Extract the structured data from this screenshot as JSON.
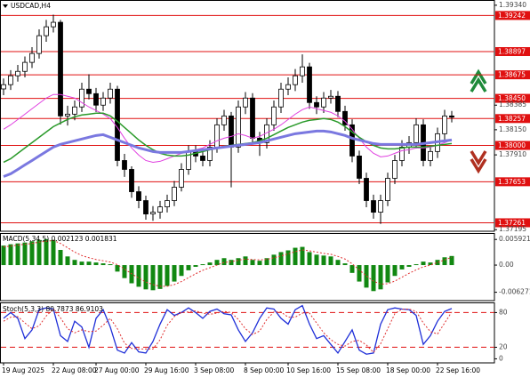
{
  "chart_data": [
    {
      "type": "candlestick",
      "title": "USDCAD,H4",
      "categories": [
        "19 Aug 2025",
        null,
        null,
        null,
        null,
        null,
        null,
        "22 Aug 08:00",
        null,
        null,
        null,
        null,
        null,
        "27 Aug 00:00",
        null,
        null,
        null,
        null,
        null,
        null,
        "29 Aug 16:00",
        null,
        null,
        null,
        null,
        null,
        null,
        "3 Sep 08:00",
        null,
        null,
        null,
        null,
        null,
        null,
        "8 Sep 00:00",
        null,
        null,
        null,
        null,
        null,
        "10 Sep 16:00",
        null,
        null,
        null,
        null,
        null,
        null,
        "15 Sep 08:00",
        null,
        null,
        null,
        null,
        null,
        null,
        "18 Sep 00:00",
        null,
        null,
        null,
        null,
        null,
        null,
        "22 Sep 16:00",
        null,
        null
      ],
      "open": [
        1.3854,
        1.38581,
        1.38666,
        1.38708,
        1.38794,
        1.38879,
        1.39049,
        1.39134,
        1.39177,
        1.38282,
        1.38299,
        1.38368,
        1.38538,
        1.38495,
        1.38385,
        1.38453,
        1.38538,
        1.37856,
        1.37771,
        1.37558,
        1.37473,
        1.37345,
        1.37362,
        1.37413,
        1.37473,
        1.37601,
        1.37771,
        1.37942,
        1.37899,
        1.37856,
        1.37984,
        1.38197,
        1.38282,
        1.37984,
        1.38368,
        1.38453,
        1.38069,
        1.38027,
        1.38197,
        1.38368,
        1.38538,
        1.38581,
        1.38666,
        1.38751,
        1.3841,
        1.38368,
        1.38453,
        1.3847,
        1.38325,
        1.38197,
        1.37899,
        1.37686,
        1.37473,
        1.37362,
        1.37473,
        1.37686,
        1.37856,
        1.37984,
        1.38027,
        1.38197,
        1.37856,
        1.37942,
        1.38112,
        1.38282
      ],
      "high": [
        1.3864,
        1.3872,
        1.3877,
        1.3885,
        1.3894,
        1.3911,
        1.392,
        1.3925,
        1.392,
        1.3838,
        1.3843,
        1.386,
        1.3868,
        1.3855,
        1.3851,
        1.386,
        1.3857,
        1.3792,
        1.378,
        1.3761,
        1.3752,
        1.3742,
        1.3747,
        1.3753,
        1.3766,
        1.3783,
        1.38,
        1.38,
        1.3795,
        1.3805,
        1.3826,
        1.3834,
        1.3832,
        1.3843,
        1.3851,
        1.385,
        1.3813,
        1.3826,
        1.3843,
        1.386,
        1.3865,
        1.3873,
        1.3887,
        1.3879,
        1.3847,
        1.3851,
        1.3853,
        1.3852,
        1.3838,
        1.3825,
        1.3795,
        1.3774,
        1.3753,
        1.3753,
        1.3774,
        1.3791,
        1.3805,
        1.3809,
        1.3826,
        1.3825,
        1.38,
        1.3817,
        1.3834,
        1.3833
      ],
      "low": [
        1.3848,
        1.3853,
        1.3861,
        1.3865,
        1.3874,
        1.3883,
        1.3899,
        1.3908,
        1.382,
        1.3819,
        1.3824,
        1.3832,
        1.3844,
        1.3832,
        1.3833,
        1.384,
        1.378,
        1.377,
        1.375,
        1.374,
        1.3729,
        1.3728,
        1.373,
        1.3736,
        1.3742,
        1.3756,
        1.3772,
        1.3784,
        1.378,
        1.378,
        1.3793,
        1.3814,
        1.376,
        1.3793,
        1.383,
        1.3801,
        1.379,
        1.3797,
        1.3814,
        1.3831,
        1.3848,
        1.3852,
        1.386,
        1.3835,
        1.383,
        1.3831,
        1.384,
        1.3827,
        1.3814,
        1.3784,
        1.3763,
        1.3741,
        1.373,
        1.3725,
        1.3742,
        1.3763,
        1.378,
        1.3792,
        1.3797,
        1.378,
        1.378,
        1.3788,
        1.3805,
        1.3822
      ],
      "close": [
        1.38581,
        1.38666,
        1.38708,
        1.38794,
        1.38879,
        1.39049,
        1.39134,
        1.39177,
        1.38282,
        1.38299,
        1.38368,
        1.38538,
        1.38495,
        1.38385,
        1.38453,
        1.38538,
        1.37856,
        1.37771,
        1.37558,
        1.37473,
        1.37345,
        1.37362,
        1.37413,
        1.37473,
        1.37601,
        1.37771,
        1.37942,
        1.37899,
        1.37856,
        1.37984,
        1.38197,
        1.38282,
        1.37984,
        1.38368,
        1.38453,
        1.38069,
        1.38027,
        1.38197,
        1.38368,
        1.38538,
        1.38581,
        1.38666,
        1.38751,
        1.3841,
        1.38368,
        1.38453,
        1.3847,
        1.38325,
        1.38197,
        1.37899,
        1.37686,
        1.37473,
        1.37362,
        1.37473,
        1.37686,
        1.37856,
        1.37984,
        1.38027,
        1.38197,
        1.37856,
        1.37942,
        1.38112,
        1.38282,
        1.3827
      ],
      "series": [
        {
          "color": "#e040e0",
          "width": 1,
          "values": [
            1.38155,
            1.38197,
            1.38248,
            1.38299,
            1.38351,
            1.38402,
            1.38453,
            1.38487,
            1.38487,
            1.3847,
            1.38453,
            1.3841,
            1.38368,
            1.38334,
            1.38299,
            1.38257,
            1.38172,
            1.38069,
            1.37976,
            1.37908,
            1.37856,
            1.37839,
            1.37848,
            1.37873,
            1.37899,
            1.37925,
            1.37942,
            1.37959,
            1.37976,
            1.3801,
            1.38044,
            1.38069,
            1.38086,
            1.38112,
            1.38095,
            1.38069,
            1.38086,
            1.38121,
            1.38155,
            1.38197,
            1.38248,
            1.38299,
            1.38342,
            1.38368,
            1.38351,
            1.38334,
            1.38317,
            1.38282,
            1.38231,
            1.38155,
            1.38069,
            1.37984,
            1.37925,
            1.37891,
            1.37899,
            1.37925,
            1.3795,
            1.37959,
            1.37976,
            1.37976,
            1.37984,
            1.38001,
            1.38027,
            1.38052
          ]
        },
        {
          "color": "#2a9a2a",
          "width": 1.5,
          "values": [
            1.37839,
            1.37873,
            1.37925,
            1.37976,
            1.38027,
            1.38078,
            1.38129,
            1.3818,
            1.38214,
            1.38248,
            1.38274,
            1.38291,
            1.38299,
            1.38308,
            1.38308,
            1.38282,
            1.38231,
            1.38172,
            1.38112,
            1.38052,
            1.38001,
            1.37959,
            1.37925,
            1.37908,
            1.37899,
            1.37899,
            1.37908,
            1.37925,
            1.37942,
            1.37959,
            1.37976,
            1.37993,
            1.38001,
            1.3801,
            1.38018,
            1.38027,
            1.38044,
            1.38069,
            1.38103,
            1.38138,
            1.38172,
            1.38197,
            1.38223,
            1.3824,
            1.38248,
            1.38257,
            1.38248,
            1.38223,
            1.3818,
            1.38129,
            1.38078,
            1.38035,
            1.38001,
            1.37976,
            1.37967,
            1.37967,
            1.37976,
            1.37984,
            1.37984,
            1.37984,
            1.37993,
            1.38001,
            1.3801,
            1.38018
          ]
        },
        {
          "color": "#7a78e0",
          "width": 3,
          "values": [
            1.37703,
            1.37729,
            1.37771,
            1.37814,
            1.37856,
            1.37899,
            1.37942,
            1.37984,
            1.3801,
            1.38027,
            1.38044,
            1.38061,
            1.38078,
            1.38095,
            1.38103,
            1.38078,
            1.38052,
            1.38027,
            1.38001,
            1.37976,
            1.37959,
            1.37942,
            1.37933,
            1.37933,
            1.37933,
            1.37933,
            1.37942,
            1.3795,
            1.37959,
            1.37967,
            1.37976,
            1.37984,
            1.37993,
            1.38001,
            1.3801,
            1.38018,
            1.38027,
            1.38044,
            1.38061,
            1.38078,
            1.38095,
            1.38112,
            1.3812,
            1.38129,
            1.38137,
            1.38137,
            1.38129,
            1.38112,
            1.38095,
            1.38069,
            1.38052,
            1.38035,
            1.38018,
            1.3801,
            1.3801,
            1.3801,
            1.3801,
            1.3801,
            1.3801,
            1.38018,
            1.38027,
            1.38035,
            1.38044,
            1.38052
          ]
        }
      ],
      "ylim": [
        1.3718,
        1.3939
      ],
      "yticks": [
        {
          "value": 1.3934,
          "label": "1.39340"
        },
        1.38385,
        {
          "value": 1.3815,
          "label": "1.38150"
        },
        {
          "value": 1.3791,
          "label": "1.37910"
        },
        1.37195
      ],
      "levels": [
        1.39242,
        1.38897,
        1.38675,
        {
          "value": 1.3845,
          "label": "1.38450"
        },
        1.38257,
        {
          "value": 1.38,
          "label": "1.38000"
        },
        1.37653,
        1.37261
      ],
      "level_style": "labeled",
      "level_color": "#e01010"
    },
    {
      "type": "bar",
      "title": "MACD(5,34,5) 0.002123 0.001831",
      "color": "#118811",
      "values": [
        0.0045,
        0.0048,
        0.005,
        0.0052,
        0.0055,
        0.0058,
        0.006,
        0.0058,
        0.0035,
        0.002,
        0.0012,
        0.0008,
        0.0008,
        0.0006,
        0.0004,
        0.0002,
        -0.0015,
        -0.003,
        -0.0042,
        -0.005,
        -0.0056,
        -0.0058,
        -0.0055,
        -0.0048,
        -0.0038,
        -0.0025,
        -0.0012,
        -0.0004,
        0.0002,
        0.0006,
        0.0012,
        0.0016,
        0.0012,
        0.0016,
        0.002,
        0.0012,
        0.001,
        0.0016,
        0.0024,
        0.003,
        0.0034,
        0.004,
        0.0042,
        0.003,
        0.0024,
        0.0022,
        0.002,
        0.0012,
        0.0004,
        -0.0018,
        -0.0038,
        -0.0052,
        -0.006,
        -0.0056,
        -0.004,
        -0.0025,
        -0.001,
        -0.0004,
        0.0002,
        0.0008,
        0.0006,
        0.0012,
        0.0018,
        0.0021
      ],
      "series": [
        {
          "color": "#e03030",
          "width": 1,
          "style": "dotted",
          "values": [
            0.0042,
            0.0044,
            0.0046,
            0.0048,
            0.005,
            0.0053,
            0.0055,
            0.0057,
            0.005,
            0.004,
            0.003,
            0.0022,
            0.0017,
            0.0013,
            0.001,
            0.0007,
            0.0001,
            -0.0009,
            -0.002,
            -0.003,
            -0.0039,
            -0.0045,
            -0.0049,
            -0.0049,
            -0.0045,
            -0.0038,
            -0.0029,
            -0.002,
            -0.0012,
            -0.0006,
            0.0,
            0.0006,
            0.0008,
            0.0011,
            0.0014,
            0.0013,
            0.0012,
            0.0013,
            0.0017,
            0.0021,
            0.0026,
            0.0031,
            0.0035,
            0.0033,
            0.003,
            0.0027,
            0.0025,
            0.002,
            0.0014,
            0.0003,
            -0.0011,
            -0.0025,
            -0.0037,
            -0.0044,
            -0.0043,
            -0.0037,
            -0.0028,
            -0.0019,
            -0.0011,
            -0.0004,
            0.0,
            0.0006,
            0.0012,
            0.0018
          ]
        }
      ],
      "ylim": [
        -0.0082,
        0.0074
      ],
      "yticks": [
        0.005921,
        {
          "value": 0,
          "label": "0.00"
        },
        -0.006271
      ]
    },
    {
      "type": "line",
      "title": "Stoch(5,3,3) 80.7873 86.9103",
      "series": [
        {
          "color": "#1f2fd8",
          "width": 1.3,
          "values": [
            70,
            80,
            70,
            35,
            50,
            85,
            88,
            86,
            40,
            30,
            65,
            55,
            20,
            70,
            85,
            55,
            15,
            10,
            28,
            12,
            10,
            30,
            60,
            85,
            75,
            80,
            88,
            80,
            70,
            82,
            86,
            78,
            76,
            50,
            30,
            45,
            70,
            88,
            86,
            70,
            60,
            85,
            92,
            60,
            35,
            40,
            25,
            10,
            30,
            50,
            15,
            8,
            10,
            60,
            85,
            88,
            86,
            85,
            75,
            25,
            40,
            65,
            82,
            87
          ]
        },
        {
          "color": "#e03030",
          "width": 1,
          "style": "dotted",
          "values": [
            65,
            72,
            73,
            62,
            52,
            57,
            74,
            86,
            71,
            52,
            45,
            50,
            47,
            48,
            58,
            70,
            52,
            27,
            18,
            17,
            17,
            17,
            33,
            58,
            73,
            80,
            81,
            83,
            79,
            77,
            79,
            82,
            80,
            68,
            52,
            42,
            48,
            68,
            81,
            81,
            72,
            72,
            79,
            79,
            62,
            45,
            33,
            25,
            22,
            30,
            32,
            24,
            11,
            26,
            52,
            78,
            86,
            86,
            82,
            62,
            47,
            43,
            62,
            81
          ]
        }
      ],
      "ylim": [
        -7,
        96
      ],
      "yticks": [
        80,
        20,
        0
      ],
      "levels": [
        80,
        20
      ],
      "level_style": "dashed",
      "level_color": "#e01010"
    }
  ]
}
